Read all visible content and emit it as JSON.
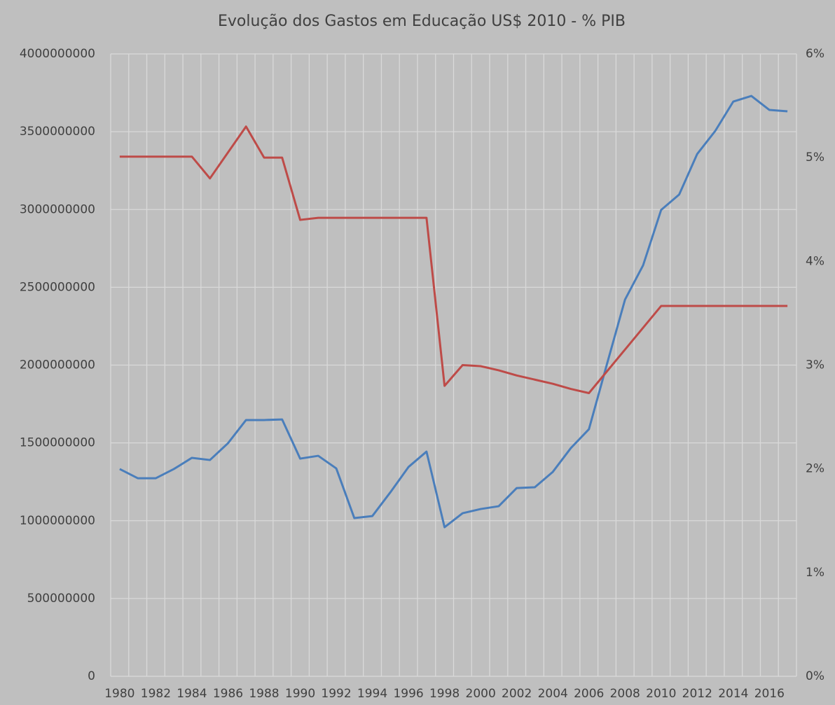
{
  "chart_data": {
    "type": "line",
    "title": "Evolução dos Gastos em Educação US$ 2010 - % PIB",
    "categories": [
      "1980",
      null,
      "1982",
      null,
      "1984",
      null,
      "1986",
      null,
      "1988",
      null,
      "1990",
      null,
      "1992",
      null,
      "1994",
      null,
      "1996",
      null,
      "1998",
      null,
      "2000",
      null,
      "2002",
      null,
      "2004",
      null,
      "2006",
      null,
      "2008",
      null,
      "2010",
      null,
      "2012",
      null,
      "2014",
      null,
      "2016",
      null
    ],
    "series": [
      {
        "color": "#4a7ebb",
        "values": [
          1332000000,
          1273000000,
          1273000000,
          1332000000,
          1404000000,
          1390000000,
          1498000000,
          1647000000,
          1647000000,
          1651000000,
          1399000000,
          1417000000,
          1336000000,
          1017000000,
          1030000000,
          1183000000,
          1345000000,
          1444000000,
          958000000,
          1048000000,
          1075000000,
          1093000000,
          1210000000,
          1215000000,
          1314000000,
          1467000000,
          1588000000,
          2007000000,
          2421000000,
          2641000000,
          2997000000,
          3096000000,
          3357000000,
          3505000000,
          3694000000,
          3730000000,
          3640000000,
          3631000000
        ]
      },
      {
        "color": "#be4b48",
        "axis": "y2",
        "values": [
          5.01,
          5.01,
          5.01,
          5.01,
          5.01,
          4.8,
          5.05,
          5.3,
          5.0,
          5.0,
          4.4,
          4.42,
          4.42,
          4.42,
          4.42,
          4.42,
          4.42,
          4.42,
          2.8,
          3.0,
          2.99,
          2.95,
          2.9,
          2.86,
          2.82,
          2.77,
          2.73,
          2.94,
          3.15,
          3.36,
          3.57,
          3.57,
          3.57,
          3.57,
          3.57,
          3.57,
          3.57,
          3.57
        ]
      }
    ],
    "ylim": [
      0,
      4000000000
    ],
    "yticks": [
      0,
      500000000,
      1000000000,
      1500000000,
      2000000000,
      2500000000,
      3000000000,
      3500000000,
      4000000000
    ],
    "y2lim": [
      0,
      6
    ],
    "y2ticks": [
      {
        "value": 0,
        "label": "0%"
      },
      {
        "value": 1,
        "label": "1%"
      },
      {
        "value": 2,
        "label": "2%"
      },
      {
        "value": 3,
        "label": "3%"
      },
      {
        "value": 4,
        "label": "4%"
      },
      {
        "value": 5,
        "label": "5%"
      },
      {
        "value": 6,
        "label": "6%"
      }
    ],
    "grid": true
  }
}
